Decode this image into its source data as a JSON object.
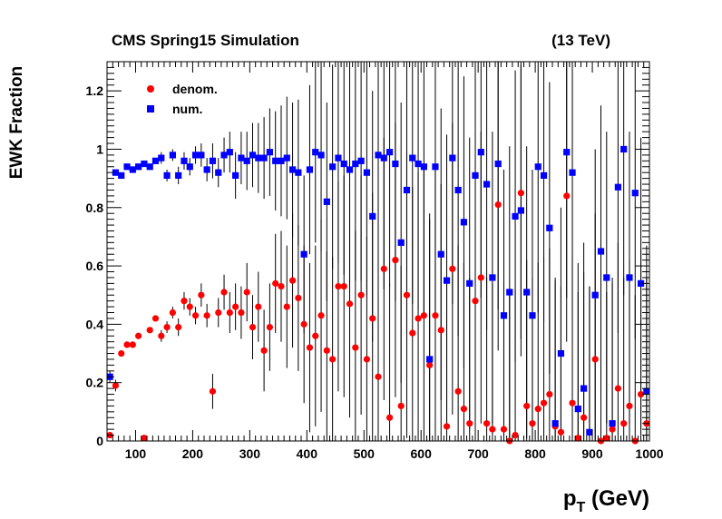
{
  "chart_data": {
    "type": "scatter",
    "title_left": "CMS Spring15 Simulation",
    "title_right": "(13 TeV)",
    "xlabel_main": "p",
    "xlabel_sub": "T",
    "xlabel_rest": " (GeV)",
    "ylabel": "EWK Fraction",
    "xlim": [
      50,
      1000
    ],
    "ylim": [
      0,
      1.3
    ],
    "xticks": [
      100,
      200,
      300,
      400,
      500,
      600,
      700,
      800,
      900,
      1000
    ],
    "yticks": [
      0,
      0.2,
      0.4,
      0.6,
      0.8,
      1,
      1.2
    ],
    "ytick_labels": [
      "0",
      "0.2",
      "0.4",
      "0.6",
      "0.8",
      "1",
      "1.2"
    ],
    "grid": false,
    "legend_position": "top-left",
    "bin_width": 10,
    "series": [
      {
        "name": "denom.",
        "color": "#ff0000",
        "marker": "circle",
        "x": [
          55,
          65,
          75,
          85,
          95,
          105,
          115,
          125,
          135,
          145,
          155,
          165,
          175,
          185,
          195,
          205,
          215,
          225,
          235,
          245,
          255,
          265,
          275,
          285,
          295,
          305,
          315,
          325,
          335,
          345,
          355,
          365,
          375,
          385,
          395,
          405,
          415,
          425,
          435,
          445,
          455,
          465,
          475,
          485,
          495,
          505,
          515,
          525,
          535,
          545,
          555,
          565,
          575,
          585,
          595,
          605,
          615,
          625,
          635,
          645,
          655,
          665,
          675,
          685,
          695,
          705,
          715,
          725,
          735,
          745,
          755,
          765,
          775,
          785,
          795,
          805,
          815,
          825,
          835,
          845,
          855,
          865,
          875,
          885,
          895,
          905,
          915,
          925,
          935,
          945,
          955,
          965,
          975,
          985,
          995
        ],
        "y": [
          0.02,
          0.19,
          0.3,
          0.33,
          0.33,
          0.36,
          0.01,
          0.38,
          0.42,
          0.36,
          0.39,
          0.44,
          0.39,
          0.48,
          0.46,
          0.43,
          0.5,
          0.43,
          0.17,
          0.44,
          0.51,
          0.44,
          0.46,
          0.44,
          0.51,
          0.39,
          0.46,
          0.31,
          0.39,
          0.54,
          0.53,
          0.46,
          0.55,
          0.49,
          0.4,
          0.32,
          0.36,
          0.43,
          0.31,
          0.28,
          0.53,
          0.53,
          0.47,
          0.32,
          0.5,
          0.28,
          0.42,
          0.22,
          0.59,
          0.08,
          0.62,
          0.12,
          0.5,
          0.37,
          0.42,
          0.43,
          0.26,
          0.43,
          0.38,
          0.05,
          0.59,
          0.17,
          0.11,
          0.06,
          0.48,
          0.56,
          0.06,
          0.04,
          0.81,
          0.04,
          0.0,
          0.02,
          0.85,
          0.12,
          0.06,
          0.11,
          0.13,
          0.16,
          0.05,
          0.03,
          0.84,
          0.13,
          0.01,
          0.08,
          0.03,
          0.28,
          0.0,
          0.01,
          0.04,
          0.18,
          0.06,
          0.12,
          0.0,
          0.16,
          0.06
        ],
        "yerr": [
          0.01,
          0.02,
          0.01,
          0.01,
          0.01,
          0.01,
          0.01,
          0.01,
          0.01,
          0.02,
          0.02,
          0.02,
          0.03,
          0.03,
          0.03,
          0.03,
          0.04,
          0.04,
          0.06,
          0.05,
          0.06,
          0.07,
          0.08,
          0.09,
          0.1,
          0.11,
          0.12,
          0.14,
          0.15,
          0.17,
          0.19,
          0.21,
          0.23,
          0.25,
          0.27,
          0.29,
          0.31,
          0.33,
          0.34,
          0.35,
          0.36,
          0.38,
          0.39,
          0.4,
          0.41,
          0.42,
          0.43,
          0.44,
          0.45,
          0.46,
          0.47,
          0.48,
          0.49,
          0.5,
          0.5,
          0.5,
          0.5,
          0.5,
          0.5,
          0.5,
          0.5,
          0.5,
          0.5,
          0.5,
          0.5,
          0.5,
          0.5,
          0.5,
          0.5,
          0.5,
          0.5,
          0.5,
          0.5,
          0.5,
          0.5,
          0.5,
          0.5,
          0.5,
          0.5,
          0.5,
          0.5,
          0.5,
          0.5,
          0.5,
          0.5,
          0.5,
          0.5,
          0.5,
          0.5,
          0.5,
          0.5,
          0.5,
          0.5,
          0.5,
          0.5
        ]
      },
      {
        "name": "num.",
        "color": "#0000ff",
        "marker": "square",
        "x": [
          55,
          65,
          75,
          85,
          95,
          105,
          115,
          125,
          135,
          145,
          155,
          165,
          175,
          185,
          195,
          205,
          215,
          225,
          235,
          245,
          255,
          265,
          275,
          285,
          295,
          305,
          315,
          325,
          335,
          345,
          355,
          365,
          375,
          385,
          395,
          405,
          415,
          425,
          435,
          445,
          455,
          465,
          475,
          485,
          495,
          505,
          515,
          525,
          535,
          545,
          555,
          565,
          575,
          585,
          595,
          605,
          615,
          625,
          635,
          645,
          655,
          665,
          675,
          685,
          695,
          705,
          715,
          725,
          735,
          745,
          755,
          765,
          775,
          785,
          795,
          805,
          815,
          825,
          835,
          845,
          855,
          865,
          875,
          885,
          895,
          905,
          915,
          925,
          935,
          945,
          955,
          965,
          975,
          985,
          995
        ],
        "y": [
          0.22,
          0.92,
          0.91,
          0.94,
          0.93,
          0.94,
          0.95,
          0.94,
          0.96,
          0.97,
          0.91,
          0.98,
          0.91,
          0.96,
          0.94,
          0.98,
          0.98,
          0.93,
          0.96,
          0.92,
          0.98,
          0.99,
          0.91,
          0.97,
          0.96,
          0.98,
          0.97,
          0.97,
          0.99,
          0.96,
          0.96,
          0.97,
          0.93,
          0.92,
          0.64,
          0.93,
          0.99,
          0.98,
          0.82,
          0.94,
          0.97,
          0.95,
          0.93,
          0.95,
          0.96,
          0.92,
          0.77,
          0.98,
          0.97,
          0.99,
          0.95,
          0.68,
          0.86,
          0.97,
          0.95,
          0.94,
          0.28,
          0.94,
          0.64,
          0.55,
          0.97,
          0.86,
          0.75,
          0.54,
          0.91,
          0.99,
          0.88,
          0.56,
          0.95,
          0.43,
          0.51,
          0.77,
          0.79,
          0.51,
          0.43,
          0.94,
          0.91,
          0.73,
          0.06,
          0.3,
          0.99,
          0.92,
          0.11,
          0.18,
          0.03,
          0.5,
          0.65,
          0.56,
          0.06,
          0.87,
          1.0,
          0.56,
          0.85,
          0.54,
          0.17
        ],
        "yerr": [
          0.02,
          0.01,
          0.01,
          0.01,
          0.01,
          0.01,
          0.01,
          0.01,
          0.01,
          0.02,
          0.02,
          0.02,
          0.03,
          0.03,
          0.03,
          0.03,
          0.04,
          0.04,
          0.06,
          0.05,
          0.06,
          0.07,
          0.08,
          0.09,
          0.1,
          0.11,
          0.12,
          0.14,
          0.15,
          0.17,
          0.19,
          0.21,
          0.23,
          0.25,
          0.27,
          0.29,
          0.31,
          0.33,
          0.34,
          0.35,
          0.36,
          0.38,
          0.39,
          0.4,
          0.41,
          0.42,
          0.43,
          0.44,
          0.45,
          0.46,
          0.47,
          0.48,
          0.49,
          0.5,
          0.5,
          0.5,
          0.5,
          0.5,
          0.5,
          0.5,
          0.5,
          0.5,
          0.5,
          0.5,
          0.5,
          0.5,
          0.5,
          0.5,
          0.5,
          0.5,
          0.5,
          0.5,
          0.5,
          0.5,
          0.5,
          0.5,
          0.5,
          0.5,
          0.5,
          0.5,
          0.5,
          0.5,
          0.5,
          0.5,
          0.5,
          0.5,
          0.5,
          0.5,
          0.5,
          0.5,
          0.5,
          0.5,
          0.5,
          0.5,
          0.5
        ]
      }
    ]
  }
}
